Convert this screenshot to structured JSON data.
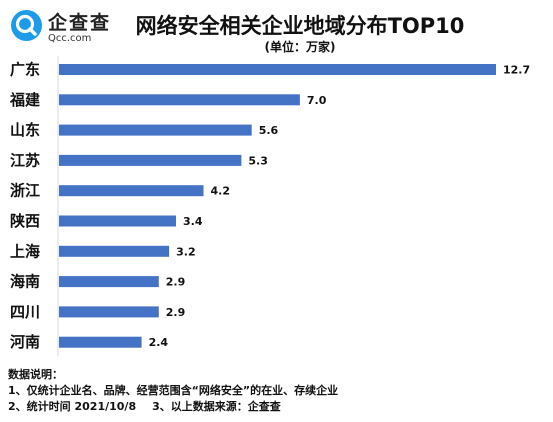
{
  "brand": {
    "name": "企查查",
    "sub": "Qcc.com",
    "color": "#1e9be8"
  },
  "header": {
    "title": "网络安全相关企业地域分布TOP10",
    "unit": "(单位：万家)"
  },
  "chart_data": {
    "type": "bar",
    "orientation": "horizontal",
    "title": "网络安全相关企业地域分布TOP10",
    "unit": "(单位：万家)",
    "categories": [
      "广东",
      "福建",
      "山东",
      "江苏",
      "浙江",
      "陕西",
      "上海",
      "海南",
      "四川",
      "河南"
    ],
    "values": [
      12.7,
      7.0,
      5.6,
      5.3,
      4.2,
      3.4,
      3.2,
      2.9,
      2.9,
      2.4
    ],
    "value_labels": [
      "12.7",
      "7.0",
      "5.6",
      "5.3",
      "4.2",
      "3.4",
      "3.2",
      "2.9",
      "2.9",
      "2.4"
    ],
    "bar_color": "#4472c4",
    "xlim": [
      0,
      12.7
    ],
    "grid": false,
    "legend": "none"
  },
  "notes": {
    "heading": "数据说明：",
    "line1": "1、仅统计企业名、品牌、经营范围含“网络安全”的在业、存续企业",
    "line2a": "2、统计时间  2021/10/8",
    "line2b": "3、以上数据来源：企查查"
  }
}
